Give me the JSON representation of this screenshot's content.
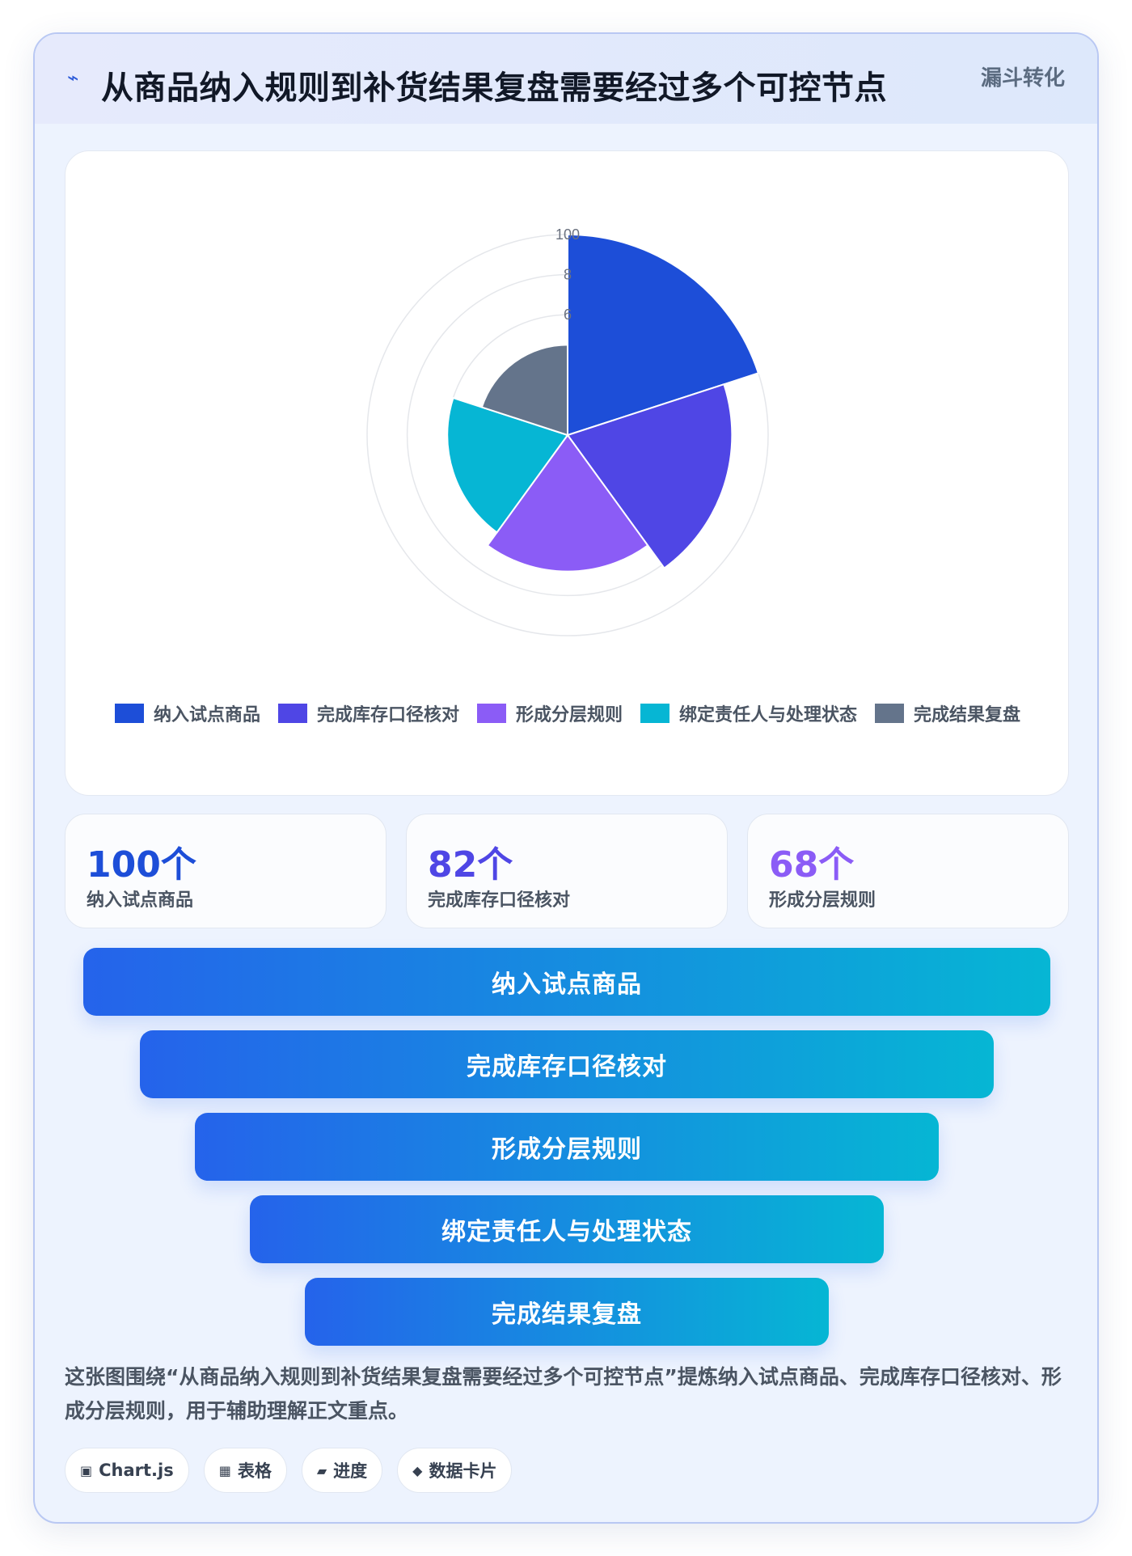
{
  "header": {
    "icon": "lightning-icon",
    "title": "从商品纳入规则到补货结果复盘需要经过多个可控节点",
    "tag": "漏斗转化"
  },
  "chart_data": {
    "type": "polarArea",
    "categories": [
      "纳入试点商品",
      "完成库存口径核对",
      "形成分层规则",
      "绑定责任人与处理状态",
      "完成结果复盘"
    ],
    "values": [
      100,
      82,
      68,
      60,
      45
    ],
    "colors": [
      "#1d4ed8",
      "#4f46e5",
      "#8b5cf6",
      "#06b6d4",
      "#64748b"
    ],
    "radial_ticks": [
      "100",
      "8",
      "6"
    ],
    "rmax": 100,
    "legend_position": "bottom"
  },
  "stats": [
    {
      "value": "100个",
      "label": "纳入试点商品",
      "color": "#1d4ed8"
    },
    {
      "value": "82个",
      "label": "完成库存口径核对",
      "color": "#4f46e5"
    },
    {
      "value": "68个",
      "label": "形成分层规则",
      "color": "#8b5cf6"
    }
  ],
  "funnel": [
    {
      "label": "纳入试点商品"
    },
    {
      "label": "完成库存口径核对"
    },
    {
      "label": "形成分层规则"
    },
    {
      "label": "绑定责任人与处理状态"
    },
    {
      "label": "完成结果复盘"
    }
  ],
  "description": "这张图围绕“从商品纳入规则到补货结果复盘需要经过多个可控节点”提炼纳入试点商品、完成库存口径核对、形成分层规则，用于辅助理解正文重点。",
  "chips": [
    {
      "icon": "chart-icon",
      "glyph": "▣",
      "label": "Chart.js"
    },
    {
      "icon": "table-icon",
      "glyph": "▦",
      "label": "表格"
    },
    {
      "icon": "progress-icon",
      "glyph": "▰",
      "label": "进度"
    },
    {
      "icon": "card-icon",
      "glyph": "◆",
      "label": "数据卡片"
    }
  ]
}
